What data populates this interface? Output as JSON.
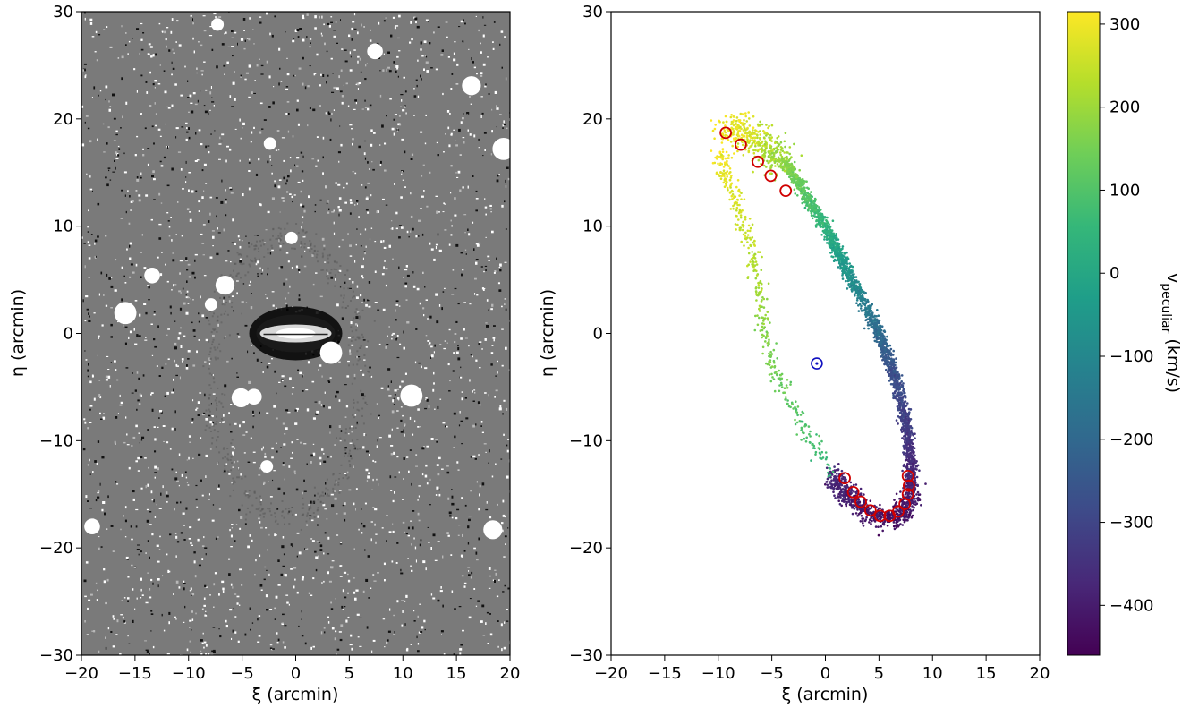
{
  "chart_data": [
    {
      "type": "heatmap",
      "title": "",
      "xlabel": "ξ (arcmin)",
      "ylabel": "η (arcmin)",
      "xlim": [
        -20,
        20
      ],
      "ylim": [
        -30,
        30
      ],
      "xticks": [
        "−20",
        "−15",
        "−10",
        "−5",
        "0",
        "5",
        "10",
        "15",
        "20"
      ],
      "yticks": [
        "30",
        "20",
        "10",
        "0",
        "−10",
        "−20",
        "−30"
      ],
      "colormap": "greyscale",
      "features": {
        "galaxy_center": [
          0,
          0
        ],
        "bright_sources": [
          [
            -7.3,
            28.8
          ],
          [
            7.4,
            26.3
          ],
          [
            16.4,
            23.1
          ],
          [
            19.4,
            17.2
          ],
          [
            -2.4,
            17.7
          ],
          [
            -13.4,
            5.4
          ],
          [
            -6.6,
            4.5
          ],
          [
            -15.9,
            1.9
          ],
          [
            -7.9,
            2.7
          ],
          [
            -3.9,
            -5.9
          ],
          [
            -5.1,
            -6.0
          ],
          [
            10.8,
            -5.8
          ],
          [
            -2.7,
            -12.4
          ],
          [
            -19.0,
            -18.0
          ],
          [
            18.4,
            -18.3
          ],
          [
            3.3,
            -1.8
          ],
          [
            -0.4,
            8.9
          ]
        ]
      }
    },
    {
      "type": "scatter",
      "title": "",
      "xlabel": "ξ (arcmin)",
      "ylabel": "η (arcmin)",
      "xlim": [
        -20,
        20
      ],
      "ylim": [
        -30,
        30
      ],
      "xticks": [
        "−20",
        "−15",
        "−10",
        "−5",
        "0",
        "5",
        "10",
        "15",
        "20"
      ],
      "yticks": [
        "30",
        "20",
        "10",
        "0",
        "−10",
        "−20",
        "−30"
      ],
      "colorbar": {
        "label": "v",
        "label_sub": "peculiar",
        "label_unit": " (km/s)",
        "range": [
          -460,
          315
        ],
        "ticks": [
          "300",
          "200",
          "100",
          "0",
          "−100",
          "−200",
          "−300",
          "−400"
        ],
        "tick_values": [
          300,
          200,
          100,
          0,
          -100,
          -200,
          -300,
          -400
        ],
        "colormap": "viridis",
        "colormap_stops": [
          "#440154",
          "#482878",
          "#3e4a89",
          "#31688e",
          "#26828e",
          "#1f9e89",
          "#35b779",
          "#6ece58",
          "#b5de2b",
          "#fde725"
        ]
      },
      "stream": {
        "outer_edge": [
          [
            -9.2,
            19.0
          ],
          [
            -7.5,
            18.6
          ],
          [
            -5.5,
            17.5
          ],
          [
            -3.0,
            15.0
          ],
          [
            -1.0,
            11.5
          ],
          [
            1.0,
            8.0
          ],
          [
            3.0,
            4.0
          ],
          [
            5.0,
            0.0
          ],
          [
            6.5,
            -4.0
          ],
          [
            7.5,
            -8.0
          ],
          [
            8.0,
            -12.0
          ],
          [
            8.0,
            -15.0
          ],
          [
            7.2,
            -17.0
          ],
          [
            5.5,
            -17.3
          ],
          [
            3.5,
            -16.5
          ],
          [
            2.0,
            -15.0
          ],
          [
            0.5,
            -13.0
          ]
        ],
        "inner_trail": [
          [
            -9.8,
            17.0
          ],
          [
            -9.2,
            14.5
          ],
          [
            -8.0,
            11.5
          ],
          [
            -7.0,
            8.0
          ],
          [
            -6.2,
            4.5
          ],
          [
            -5.8,
            0.0
          ],
          [
            -5.0,
            -2.5
          ],
          [
            -3.5,
            -6.0
          ],
          [
            -1.5,
            -9.5
          ],
          [
            0.5,
            -13.0
          ]
        ],
        "velocity_start": 310,
        "velocity_mid": -260,
        "velocity_end": -430,
        "velocity_inner_end": 60
      },
      "red_circles": [
        [
          -9.3,
          18.7
        ],
        [
          -7.9,
          17.6
        ],
        [
          -6.3,
          16.0
        ],
        [
          -5.1,
          14.7
        ],
        [
          -3.7,
          13.3
        ],
        [
          1.8,
          -13.5
        ],
        [
          2.6,
          -14.8
        ],
        [
          3.3,
          -15.7
        ],
        [
          4.2,
          -16.5
        ],
        [
          5.1,
          -17.0
        ],
        [
          6.0,
          -17.0
        ],
        [
          6.8,
          -16.6
        ],
        [
          7.4,
          -15.9
        ],
        [
          7.7,
          -15.0
        ],
        [
          7.8,
          -14.2
        ],
        [
          7.7,
          -13.3
        ]
      ],
      "blue_marker": [
        -0.8,
        -2.8
      ]
    }
  ]
}
